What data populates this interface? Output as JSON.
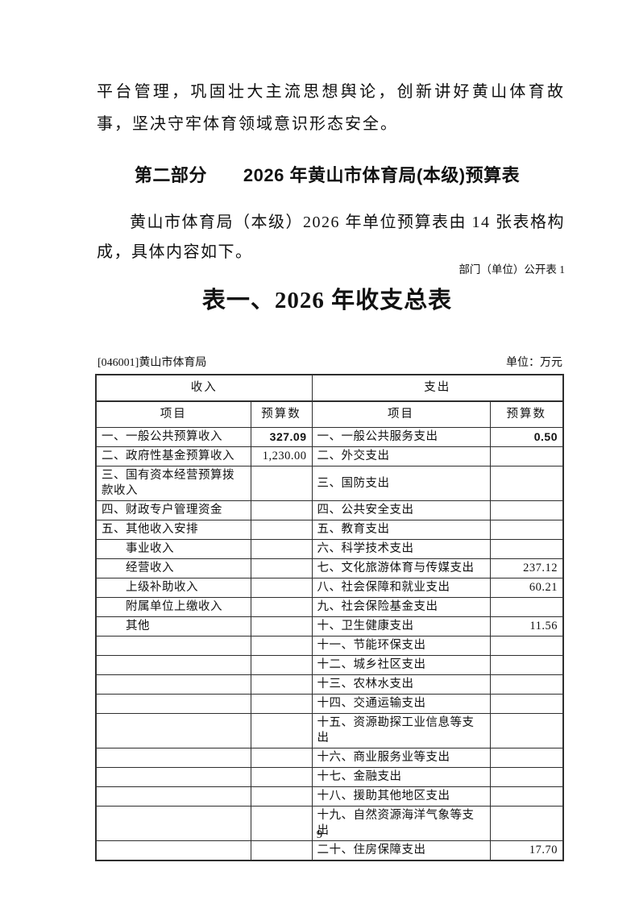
{
  "document": {
    "paragraph1": "平台管理，巩固壮大主流思想舆论，创新讲好黄山体育故事，坚决守牢体育领域意识形态安全。",
    "section_heading": "第二部分　　2026 年黄山市体育局(本级)预算表",
    "paragraph2": "黄山市体育局（本级）2026 年单位预算表由 14 张表格构成，具体内容如下。",
    "table_note": "部门（单位）公开表 1",
    "table_title": "表一、2026 年收支总表",
    "org_label": "[046001]黄山市体育局",
    "unit_label": "单位：万元",
    "page_number": "9"
  },
  "budget_table": {
    "income_group_header": "收入",
    "expense_group_header": "支出",
    "item_col_header": "项目",
    "budget_col_header": "预算数",
    "rows": [
      {
        "income_item": "一、一般公共预算收入",
        "income_value": "327.09",
        "income_value_bold": true,
        "income_indent": false,
        "expense_item": "一、一般公共服务支出",
        "expense_value": "0.50",
        "expense_value_bold": true
      },
      {
        "income_item": "二、政府性基金预算收入",
        "income_value": "1,230.00",
        "income_value_bold": false,
        "income_indent": false,
        "expense_item": "二、外交支出",
        "expense_value": "",
        "expense_value_bold": false
      },
      {
        "income_item": "三、国有资本经营预算拨款收入",
        "income_value": "",
        "income_value_bold": false,
        "income_indent": false,
        "expense_item": "三、国防支出",
        "expense_value": "",
        "expense_value_bold": false
      },
      {
        "income_item": "四、财政专户管理资金",
        "income_value": "",
        "income_value_bold": false,
        "income_indent": false,
        "expense_item": "四、公共安全支出",
        "expense_value": "",
        "expense_value_bold": false
      },
      {
        "income_item": "五、其他收入安排",
        "income_value": "",
        "income_value_bold": false,
        "income_indent": false,
        "expense_item": "五、教育支出",
        "expense_value": "",
        "expense_value_bold": false
      },
      {
        "income_item": "事业收入",
        "income_value": "",
        "income_value_bold": false,
        "income_indent": true,
        "expense_item": "六、科学技术支出",
        "expense_value": "",
        "expense_value_bold": false
      },
      {
        "income_item": "经营收入",
        "income_value": "",
        "income_value_bold": false,
        "income_indent": true,
        "expense_item": "七、文化旅游体育与传媒支出",
        "expense_value": "237.12",
        "expense_value_bold": false
      },
      {
        "income_item": "上级补助收入",
        "income_value": "",
        "income_value_bold": false,
        "income_indent": true,
        "expense_item": "八、社会保障和就业支出",
        "expense_value": "60.21",
        "expense_value_bold": false
      },
      {
        "income_item": "附属单位上缴收入",
        "income_value": "",
        "income_value_bold": false,
        "income_indent": true,
        "expense_item": "九、社会保险基金支出",
        "expense_value": "",
        "expense_value_bold": false
      },
      {
        "income_item": "其他",
        "income_value": "",
        "income_value_bold": false,
        "income_indent": true,
        "expense_item": "十、卫生健康支出",
        "expense_value": "11.56",
        "expense_value_bold": false
      },
      {
        "income_item": "",
        "income_value": "",
        "income_value_bold": false,
        "income_indent": false,
        "expense_item": "十一、节能环保支出",
        "expense_value": "",
        "expense_value_bold": false
      },
      {
        "income_item": "",
        "income_value": "",
        "income_value_bold": false,
        "income_indent": false,
        "expense_item": "十二、城乡社区支出",
        "expense_value": "",
        "expense_value_bold": false
      },
      {
        "income_item": "",
        "income_value": "",
        "income_value_bold": false,
        "income_indent": false,
        "expense_item": "十三、农林水支出",
        "expense_value": "",
        "expense_value_bold": false
      },
      {
        "income_item": "",
        "income_value": "",
        "income_value_bold": false,
        "income_indent": false,
        "expense_item": "十四、交通运输支出",
        "expense_value": "",
        "expense_value_bold": false
      },
      {
        "income_item": "",
        "income_value": "",
        "income_value_bold": false,
        "income_indent": false,
        "expense_item": "十五、资源勘探工业信息等支出",
        "expense_value": "",
        "expense_value_bold": false
      },
      {
        "income_item": "",
        "income_value": "",
        "income_value_bold": false,
        "income_indent": false,
        "expense_item": "十六、商业服务业等支出",
        "expense_value": "",
        "expense_value_bold": false
      },
      {
        "income_item": "",
        "income_value": "",
        "income_value_bold": false,
        "income_indent": false,
        "expense_item": "十七、金融支出",
        "expense_value": "",
        "expense_value_bold": false
      },
      {
        "income_item": "",
        "income_value": "",
        "income_value_bold": false,
        "income_indent": false,
        "expense_item": "十八、援助其他地区支出",
        "expense_value": "",
        "expense_value_bold": false
      },
      {
        "income_item": "",
        "income_value": "",
        "income_value_bold": false,
        "income_indent": false,
        "expense_item": "十九、自然资源海洋气象等支出",
        "expense_value": "",
        "expense_value_bold": false
      },
      {
        "income_item": "",
        "income_value": "",
        "income_value_bold": false,
        "income_indent": false,
        "expense_item": "二十、住房保障支出",
        "expense_value": "17.70",
        "expense_value_bold": false
      }
    ]
  }
}
